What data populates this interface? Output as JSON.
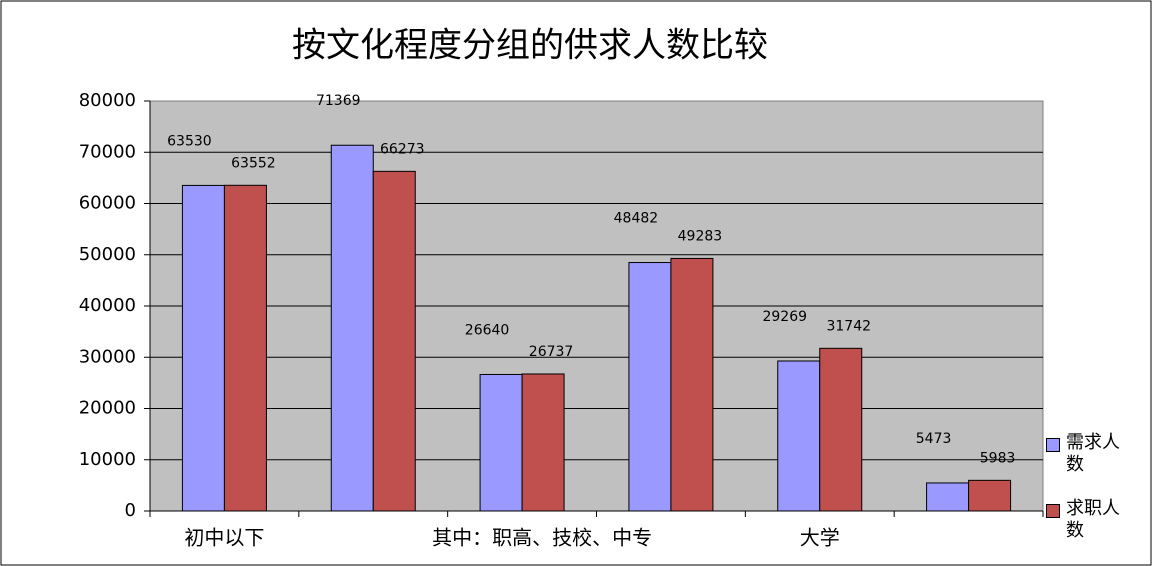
{
  "chart_data": {
    "type": "bar",
    "title": "按文化程度分组的供求人数比较",
    "categories": [
      "初中以下",
      null,
      "其中：职高、技校、中专",
      null,
      "大学",
      null
    ],
    "series": [
      {
        "name": "需求人数",
        "color": "#9999ff",
        "values": [
          63530,
          71369,
          26640,
          48482,
          29269,
          5473
        ]
      },
      {
        "name": "求职人数",
        "color": "#c0504d",
        "values": [
          63552,
          66273,
          26737,
          49283,
          31742,
          5983
        ]
      }
    ],
    "ylim": [
      0,
      80000
    ],
    "yticks": [
      0,
      10000,
      20000,
      30000,
      40000,
      50000,
      60000,
      70000,
      80000
    ],
    "grid": true,
    "legend": "right"
  }
}
